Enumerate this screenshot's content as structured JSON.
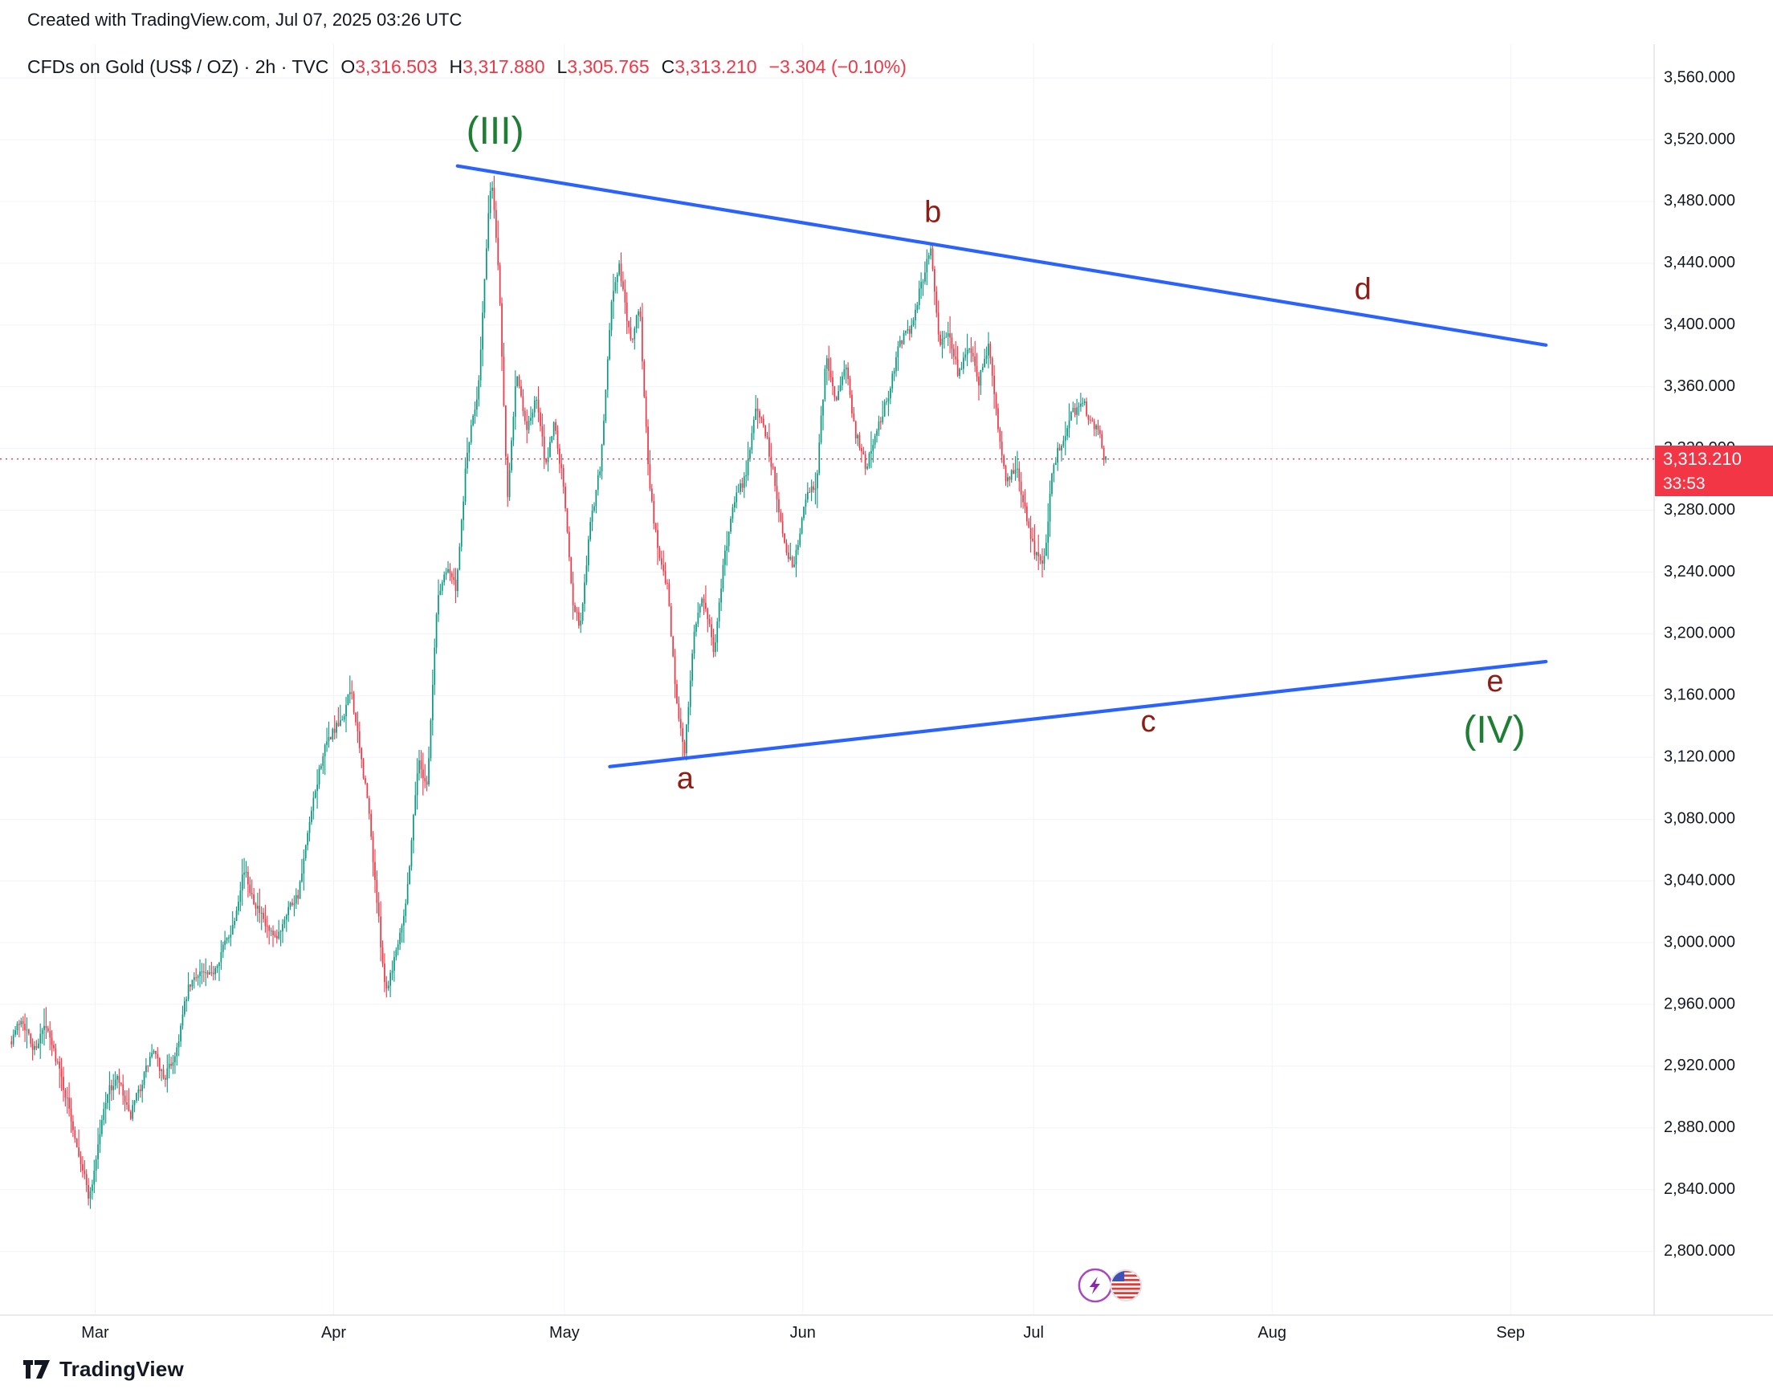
{
  "top_bar": {
    "created_with": "Created with TradingView.com, Jul 07, 2025 03:26 UTC"
  },
  "legend": {
    "symbol": "CFDs on Gold (US$ / OZ) · 2h · TVC",
    "o_label": "O",
    "o_value": "3,316.503",
    "h_label": "H",
    "h_value": "3,317.880",
    "l_label": "L",
    "l_value": "3,305.765",
    "c_label": "C",
    "c_value": "3,313.210",
    "change": "−3.304 (−0.10%)"
  },
  "price_label": {
    "price": "3,313.210",
    "countdown": "33:53"
  },
  "footer": {
    "brand": "TradingView"
  },
  "colors": {
    "up": "#089981",
    "down": "#f23645",
    "trendline": "#2962ff",
    "wave_letter": "#8e1d15",
    "wave_degree": "#1e7e34",
    "price_line": "#f23645",
    "price_label_bg": "#f23645",
    "grid": "#f0f3fa",
    "axis_line": "#e0e3eb",
    "axis_text": "#131722",
    "header_red": "#f23645"
  },
  "chart_data": {
    "type": "candlestick",
    "title": "CFDs on Gold (US$ / OZ) · 2h · TVC",
    "symbol": "CFDs on Gold (US$ / OZ)",
    "interval": "2h",
    "exchange": "TVC",
    "xlabel": "",
    "ylabel": "",
    "ylim": [
      2758,
      3585
    ],
    "current_price": 3313.21,
    "change": -3.304,
    "change_pct": -0.1,
    "price_ticks": [
      "3,560.000",
      "3,520.000",
      "3,480.000",
      "3,440.000",
      "3,400.000",
      "3,360.000",
      "3,320.000",
      "3,280.000",
      "3,240.000",
      "3,200.000",
      "3,160.000",
      "3,120.000",
      "3,080.000",
      "3,040.000",
      "3,000.000",
      "2,960.000",
      "2,920.000",
      "2,880.000",
      "2,840.000",
      "2,800.000"
    ],
    "month_ticks": [
      {
        "label": "Mar",
        "day": 11
      },
      {
        "label": "Apr",
        "day": 42
      },
      {
        "label": "May",
        "day": 72
      },
      {
        "label": "Jun",
        "day": 103
      },
      {
        "label": "Jul",
        "day": 133
      },
      {
        "label": "Aug",
        "day": 164
      },
      {
        "label": "Sep",
        "day": 195
      }
    ],
    "candle_interval_days": 0.25,
    "price_path": [
      [
        0,
        2936
      ],
      [
        1.5,
        2952
      ],
      [
        3,
        2930
      ],
      [
        4.5,
        2946
      ],
      [
        6,
        2925
      ],
      [
        7.5,
        2895
      ],
      [
        9,
        2862
      ],
      [
        10.3,
        2834
      ],
      [
        11.5,
        2872
      ],
      [
        12.5,
        2902
      ],
      [
        14,
        2912
      ],
      [
        15.5,
        2886
      ],
      [
        17,
        2908
      ],
      [
        18.5,
        2930
      ],
      [
        20,
        2912
      ],
      [
        21.5,
        2928
      ],
      [
        23,
        2968
      ],
      [
        24.5,
        2982
      ],
      [
        26,
        2977
      ],
      [
        27.5,
        2995
      ],
      [
        29,
        3012
      ],
      [
        30.3,
        3048
      ],
      [
        31.5,
        3030
      ],
      [
        33,
        3012
      ],
      [
        34.5,
        3000
      ],
      [
        36,
        3022
      ],
      [
        37.5,
        3032
      ],
      [
        39,
        3080
      ],
      [
        40.5,
        3120
      ],
      [
        41.8,
        3136
      ],
      [
        43,
        3142
      ],
      [
        44.3,
        3165
      ],
      [
        45.3,
        3128
      ],
      [
        46.5,
        3090
      ],
      [
        48,
        3008
      ],
      [
        48.8,
        2968
      ],
      [
        50,
        2992
      ],
      [
        51.5,
        3028
      ],
      [
        53,
        3118
      ],
      [
        54.2,
        3102
      ],
      [
        55.5,
        3222
      ],
      [
        56.8,
        3245
      ],
      [
        58,
        3228
      ],
      [
        59.3,
        3315
      ],
      [
        60.8,
        3358
      ],
      [
        62.5,
        3498
      ],
      [
        63.5,
        3435
      ],
      [
        64.6,
        3288
      ],
      [
        65.8,
        3372
      ],
      [
        67,
        3332
      ],
      [
        68.4,
        3352
      ],
      [
        69.6,
        3308
      ],
      [
        70.7,
        3338
      ],
      [
        71.9,
        3296
      ],
      [
        73.1,
        3222
      ],
      [
        74.1,
        3204
      ],
      [
        75.3,
        3268
      ],
      [
        76.8,
        3312
      ],
      [
        78.2,
        3420
      ],
      [
        79.2,
        3438
      ],
      [
        80.6,
        3388
      ],
      [
        81.8,
        3412
      ],
      [
        83,
        3302
      ],
      [
        84.2,
        3252
      ],
      [
        85.4,
        3232
      ],
      [
        86.5,
        3162
      ],
      [
        87.6,
        3122
      ],
      [
        89,
        3208
      ],
      [
        90.2,
        3224
      ],
      [
        91.5,
        3186
      ],
      [
        92.6,
        3242
      ],
      [
        94,
        3286
      ],
      [
        95.6,
        3302
      ],
      [
        97,
        3348
      ],
      [
        98.2,
        3330
      ],
      [
        99.4,
        3298
      ],
      [
        100.7,
        3256
      ],
      [
        101.9,
        3244
      ],
      [
        103.3,
        3288
      ],
      [
        104.8,
        3298
      ],
      [
        106,
        3378
      ],
      [
        107.4,
        3352
      ],
      [
        108.6,
        3372
      ],
      [
        109.9,
        3330
      ],
      [
        111.2,
        3308
      ],
      [
        112.5,
        3330
      ],
      [
        114,
        3352
      ],
      [
        115.5,
        3388
      ],
      [
        117,
        3398
      ],
      [
        118.5,
        3428
      ],
      [
        119.7,
        3450
      ],
      [
        120.8,
        3388
      ],
      [
        122,
        3396
      ],
      [
        123.2,
        3368
      ],
      [
        124.6,
        3388
      ],
      [
        125.9,
        3362
      ],
      [
        127.1,
        3388
      ],
      [
        128.3,
        3338
      ],
      [
        129.5,
        3298
      ],
      [
        130.8,
        3308
      ],
      [
        132,
        3278
      ],
      [
        133.2,
        3252
      ],
      [
        134.3,
        3243
      ],
      [
        135.5,
        3308
      ],
      [
        136.9,
        3328
      ],
      [
        138.1,
        3343
      ],
      [
        139.3,
        3352
      ],
      [
        140.4,
        3338
      ],
      [
        141.5,
        3330
      ],
      [
        142.3,
        3313
      ]
    ],
    "trendlines": [
      {
        "name": "upper-converging-line",
        "from": [
          58.1,
          3503
        ],
        "to": [
          199.6,
          3387
        ]
      },
      {
        "name": "lower-converging-line",
        "from": [
          77.9,
          3114
        ],
        "to": [
          199.6,
          3182
        ]
      }
    ],
    "annotations": [
      {
        "text": "(III)",
        "day": 63,
        "price": 3524,
        "size": 48,
        "color_key": "wave_degree"
      },
      {
        "text": "(IV)",
        "day": 192.9,
        "price": 3136,
        "size": 48,
        "color_key": "wave_degree"
      },
      {
        "text": "a",
        "day": 87.7,
        "price": 3105,
        "size": 38,
        "color_key": "wave_letter"
      },
      {
        "text": "b",
        "day": 119.9,
        "price": 3472,
        "size": 38,
        "color_key": "wave_letter"
      },
      {
        "text": "c",
        "day": 147.9,
        "price": 3142,
        "size": 38,
        "color_key": "wave_letter"
      },
      {
        "text": "d",
        "day": 175.8,
        "price": 3422,
        "size": 38,
        "color_key": "wave_letter"
      },
      {
        "text": "e",
        "day": 193,
        "price": 3168,
        "size": 38,
        "color_key": "wave_letter"
      }
    ],
    "events": [
      {
        "icon": "lightning",
        "day": 141
      },
      {
        "icon": "us-flag",
        "day": 145
      }
    ]
  }
}
